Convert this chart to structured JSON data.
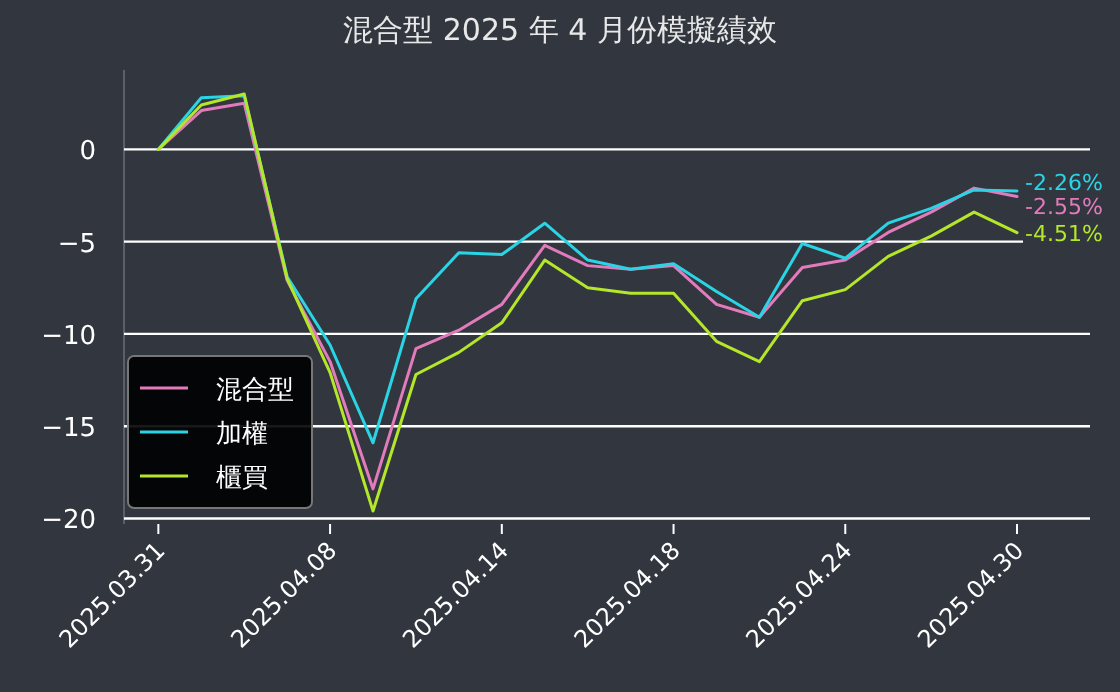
{
  "chart_data": {
    "type": "line",
    "title": "混合型 2025 年 4 月份模擬績效",
    "categories": [
      "2025.03.31",
      null,
      null,
      null,
      "2025.04.08",
      null,
      null,
      null,
      "2025.04.14",
      null,
      null,
      null,
      "2025.04.18",
      null,
      null,
      null,
      "2025.04.24",
      null,
      null,
      null,
      "2025.04.30"
    ],
    "series": [
      {
        "name": "混合型",
        "color": "#e27bbb",
        "values": [
          0,
          2.1,
          2.5,
          -7.1,
          -11.5,
          -18.4,
          -10.8,
          -9.8,
          -8.4,
          -5.2,
          -6.3,
          -6.5,
          -6.3,
          -8.4,
          -9.1,
          -6.4,
          -6.0,
          -4.5,
          -3.4,
          -2.1,
          -2.55
        ],
        "value_labels": [
          null,
          null,
          null,
          null,
          null,
          null,
          null,
          null,
          null,
          null,
          null,
          null,
          null,
          null,
          null,
          null,
          null,
          null,
          null,
          null,
          "-2.55%"
        ]
      },
      {
        "name": "加權",
        "color": "#2ad4e4",
        "values": [
          0,
          2.8,
          2.9,
          -6.9,
          -10.6,
          -15.9,
          -8.1,
          -5.6,
          -5.7,
          -4.0,
          -6.0,
          -6.5,
          -6.2,
          -7.7,
          -9.1,
          -5.1,
          -5.9,
          -4.0,
          -3.2,
          -2.2,
          -2.26
        ],
        "value_labels": [
          null,
          null,
          null,
          null,
          null,
          null,
          null,
          null,
          null,
          null,
          null,
          null,
          null,
          null,
          null,
          null,
          null,
          null,
          null,
          null,
          "-2.26%"
        ]
      },
      {
        "name": "櫃買",
        "color": "#b4e62a",
        "values": [
          0,
          2.4,
          3.0,
          -7.0,
          -12.1,
          -19.6,
          -12.2,
          -11.0,
          -9.4,
          -6.0,
          -7.5,
          -7.8,
          -7.8,
          -10.4,
          -11.5,
          -8.2,
          -7.6,
          -5.8,
          -4.7,
          -3.4,
          -4.51
        ],
        "value_labels": [
          null,
          null,
          null,
          null,
          null,
          null,
          null,
          null,
          null,
          null,
          null,
          null,
          null,
          null,
          null,
          null,
          null,
          null,
          null,
          null,
          "-4.51%"
        ]
      }
    ],
    "yticks": [
      0,
      {
        "value": -5,
        "label": "−5"
      },
      {
        "value": -10,
        "label": "−10"
      },
      {
        "value": -15,
        "label": "−15"
      },
      {
        "value": -20,
        "label": "−20"
      }
    ],
    "ylim": [
      -20.3,
      4.3
    ],
    "grid": "y",
    "legend": "bottom left"
  }
}
